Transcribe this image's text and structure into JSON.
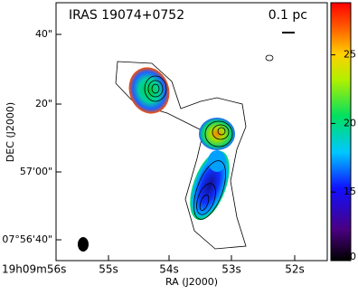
{
  "figure": {
    "title": "IRAS 19074+0752",
    "scale_label": "0.1 pc",
    "x_label": "RA (J2000)",
    "y_label": "DEC (J2000)",
    "x_ticks": [
      "19h09m56s",
      "55s",
      "54s",
      "53s",
      "52s"
    ],
    "y_ticks": [
      "40\"",
      "20\"",
      "57'00\"",
      "07°56'40\""
    ],
    "colorbar": {
      "range": [
        10,
        28.8
      ],
      "ticks": [
        10,
        15,
        20,
        25
      ]
    }
  }
}
